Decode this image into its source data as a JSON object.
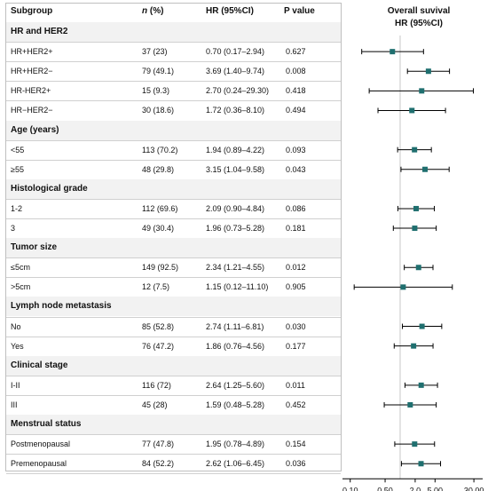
{
  "headers": {
    "subgroup": "Subgroup",
    "n_italic": "n",
    "n_rest": " (%)",
    "hr": "HR (95%CI)",
    "p": "P value"
  },
  "plot_title": [
    "Overall suvival",
    "HR (95%CI)"
  ],
  "colors": {
    "marker": "#1f6f6f",
    "line": "#000000",
    "group_bg": "#f2f2f2",
    "ref_line": "#c8c8c8"
  },
  "chart_data": {
    "type": "forest",
    "x_scale": "log",
    "xlim": [
      0.07,
      45
    ],
    "ticks": [
      "0.10",
      "0.50",
      "2.0",
      "5.00",
      "30.00"
    ],
    "tick_values": [
      0.1,
      0.5,
      2,
      5,
      30
    ],
    "reference_value": 1,
    "groups": [
      {
        "label": "HR and HER2",
        "rows": [
          {
            "label": "HR+HER2+",
            "n": "37 (23)",
            "hr_text": "0.70 (0.17–2.94)",
            "p": "0.627",
            "hr": 0.7,
            "lo": 0.17,
            "hi": 2.94
          },
          {
            "label": "HR+HER2−",
            "n": "79 (49.1)",
            "hr_text": "3.69 (1.40–9.74)",
            "p": "0.008",
            "hr": 3.69,
            "lo": 1.4,
            "hi": 9.74
          },
          {
            "label": "HR-HER2+",
            "n": "15 (9.3)",
            "hr_text": "2.70 (0.24–29.30)",
            "p": "0.418",
            "hr": 2.7,
            "lo": 0.24,
            "hi": 29.3
          },
          {
            "label": "HR−HER2−",
            "n": "30 (18.6)",
            "hr_text": "1.72 (0.36–8.10)",
            "p": "0.494",
            "hr": 1.72,
            "lo": 0.36,
            "hi": 8.1
          }
        ]
      },
      {
        "label": "Age (years)",
        "rows": [
          {
            "label": "<55",
            "n": "113 (70.2)",
            "hr_text": "1.94 (0.89–4.22)",
            "p": "0.093",
            "hr": 1.94,
            "lo": 0.89,
            "hi": 4.22
          },
          {
            "label": "≥55",
            "n": "48 (29.8)",
            "hr_text": "3.15 (1.04–9.58)",
            "p": "0.043",
            "hr": 3.15,
            "lo": 1.04,
            "hi": 9.58
          }
        ]
      },
      {
        "label": "Histological grade",
        "rows": [
          {
            "label": "1-2",
            "n": "112 (69.6)",
            "hr_text": "2.09 (0.90–4.84)",
            "p": "0.086",
            "hr": 2.09,
            "lo": 0.9,
            "hi": 4.84
          },
          {
            "label": "3",
            "n": "49 (30.4)",
            "hr_text": "1.96 (0.73–5.28)",
            "p": "0.181",
            "hr": 1.96,
            "lo": 0.73,
            "hi": 5.28
          }
        ]
      },
      {
        "label": "Tumor size",
        "rows": [
          {
            "label": "≤5cm",
            "n": "149 (92.5)",
            "hr_text": "2.34 (1.21–4.55)",
            "p": "0.012",
            "hr": 2.34,
            "lo": 1.21,
            "hi": 4.55
          },
          {
            "label": ">5cm",
            "n": "12 (7.5)",
            "hr_text": "1.15 (0.12–11.10)",
            "p": "0.905",
            "hr": 1.15,
            "lo": 0.12,
            "hi": 11.1
          }
        ]
      },
      {
        "label": "Lymph node metastasis",
        "rows": [
          {
            "label": "No",
            "n": "85 (52.8)",
            "hr_text": "2.74 (1.11–6.81)",
            "p": "0.030",
            "hr": 2.74,
            "lo": 1.11,
            "hi": 6.81
          },
          {
            "label": "Yes",
            "n": "76 (47.2)",
            "hr_text": "1.86 (0.76–4.56)",
            "p": "0.177",
            "hr": 1.86,
            "lo": 0.76,
            "hi": 4.56
          }
        ]
      },
      {
        "label": "Clinical stage",
        "rows": [
          {
            "label": "I-II",
            "n": "116 (72)",
            "hr_text": "2.64 (1.25–5.60)",
            "p": "0.011",
            "hr": 2.64,
            "lo": 1.25,
            "hi": 5.6
          },
          {
            "label": "III",
            "n": "45 (28)",
            "hr_text": "1.59 (0.48–5.28)",
            "p": "0.452",
            "hr": 1.59,
            "lo": 0.48,
            "hi": 5.28
          }
        ]
      },
      {
        "label": "Menstrual status",
        "rows": [
          {
            "label": "Postmenopausal",
            "n": "77 (47.8)",
            "hr_text": "1.95 (0.78–4.89)",
            "p": "0.154",
            "hr": 1.95,
            "lo": 0.78,
            "hi": 4.89
          },
          {
            "label": "Premenopausal",
            "n": "84 (52.2)",
            "hr_text": "2.62 (1.06–6.45)",
            "p": "0.036",
            "hr": 2.62,
            "lo": 1.06,
            "hi": 6.45
          }
        ]
      }
    ]
  }
}
